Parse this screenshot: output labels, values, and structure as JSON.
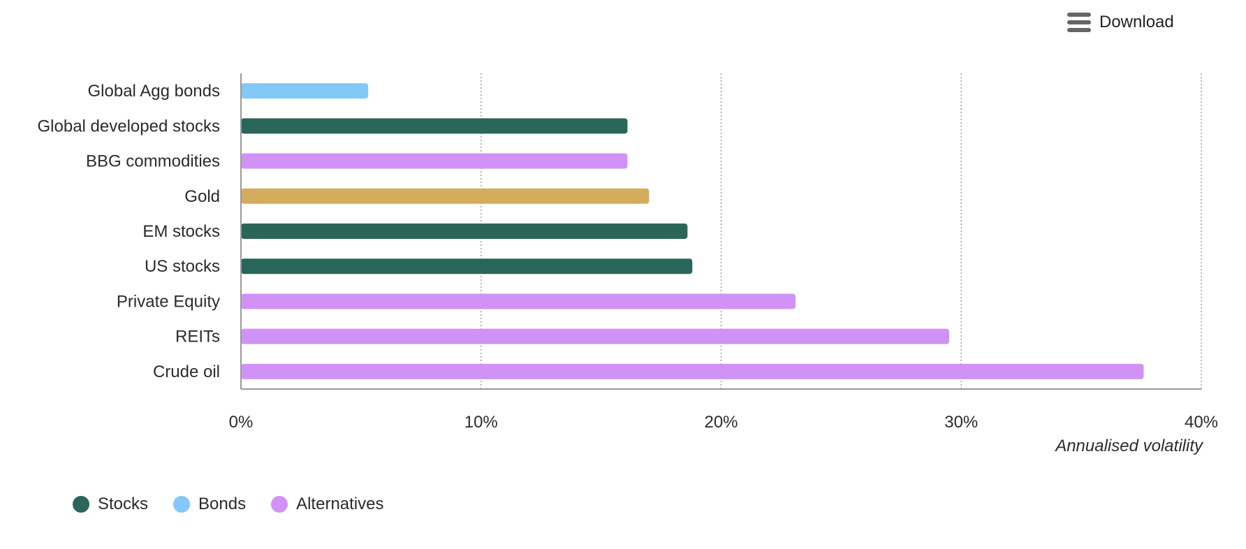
{
  "toolbar": {
    "download_label": "Download"
  },
  "colors": {
    "Stocks": "#2a6659",
    "Bonds": "#82c8f8",
    "Alternatives": "#d192f6",
    "Gold": "#d3ad5c",
    "grid": "#a0a0a0",
    "axis": "#999999"
  },
  "legend": [
    {
      "label": "Stocks",
      "color": "#2a6659"
    },
    {
      "label": "Bonds",
      "color": "#82c8f8"
    },
    {
      "label": "Alternatives",
      "color": "#d192f6"
    }
  ],
  "chart_data": {
    "type": "bar",
    "orientation": "horizontal",
    "categories": [
      "Global Agg bonds",
      "Global developed stocks",
      "BBG commodities",
      "Gold",
      "EM stocks",
      "US stocks",
      "Private Equity",
      "REITs",
      "Crude oil"
    ],
    "values": [
      5.3,
      16.1,
      16.1,
      17.0,
      18.6,
      18.8,
      23.1,
      29.5,
      37.6
    ],
    "groups": [
      "Bonds",
      "Stocks",
      "Alternatives",
      "Gold",
      "Stocks",
      "Stocks",
      "Alternatives",
      "Alternatives",
      "Alternatives"
    ],
    "xlim": [
      0,
      40
    ],
    "xticks": [
      0,
      10,
      20,
      30,
      40
    ],
    "xtick_labels": [
      "0%",
      "10%",
      "20%",
      "30%",
      "40%"
    ],
    "xlabel": "Annualised volatility",
    "grid": true,
    "legend_position": "bottom-left"
  }
}
